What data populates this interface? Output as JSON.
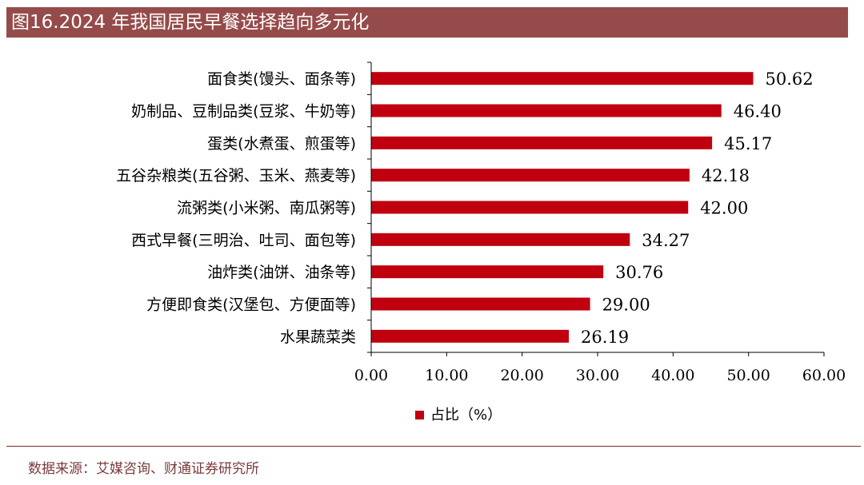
{
  "title": "图16.2024 年我国居民早餐选择趋向多元化",
  "source": "数据来源：艾媒咨询、财通证券研究所",
  "colors": {
    "bar": "#c0000e",
    "title_bg": "#964b4b"
  },
  "chart_data": {
    "type": "bar",
    "orientation": "horizontal",
    "categories": [
      "面食类(馒头、面条等)",
      "奶制品、豆制品类(豆浆、牛奶等)",
      "蛋类(水煮蛋、煎蛋等)",
      "五谷杂粮类(五谷粥、玉米、燕麦等)",
      "流粥类(小米粥、南瓜粥等)",
      "西式早餐(三明治、吐司、面包等)",
      "油炸类(油饼、油条等)",
      "方便即食类(汉堡包、方便面等)",
      "水果蔬菜类"
    ],
    "series": [
      {
        "name": "占比（%）",
        "values": [
          50.62,
          46.4,
          45.17,
          42.18,
          42.0,
          34.27,
          30.76,
          29.0,
          26.19
        ]
      }
    ],
    "value_labels": [
      "50.62",
      "46.40",
      "45.17",
      "42.18",
      "42.00",
      "34.27",
      "30.76",
      "29.00",
      "26.19"
    ],
    "xlim": [
      0,
      60
    ],
    "xticks": [
      "0.00",
      "10.00",
      "20.00",
      "30.00",
      "40.00",
      "50.00",
      "60.00"
    ],
    "grid": false,
    "legend": "bottom-center"
  }
}
